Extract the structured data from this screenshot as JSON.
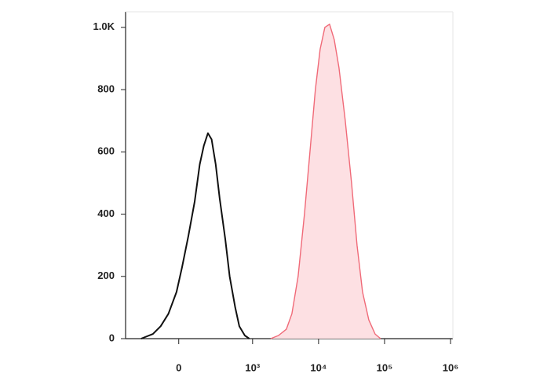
{
  "chart_data": {
    "type": "histogram",
    "xscale": "biexponential",
    "xlim": [
      -720,
      1000000
    ],
    "xticks": [
      0,
      {
        "value": 1000,
        "label": "10³"
      },
      {
        "value": 10000,
        "label": "10⁴"
      },
      {
        "value": 100000,
        "label": "10⁵"
      },
      {
        "value": 1000000,
        "label": "10⁶"
      }
    ],
    "ylim": [
      0,
      1050
    ],
    "yticks": [
      0,
      200,
      400,
      600,
      800,
      {
        "value": 1000,
        "label": "1.0K"
      }
    ],
    "series": [
      {
        "color": "#111111",
        "fill": "none",
        "x": [
          -510,
          -350,
          -245,
          -140,
          -30,
          45,
          130,
          215,
          285,
          340,
          395,
          445,
          500,
          555,
          630,
          690,
          765,
          820,
          895,
          955
        ],
        "values": [
          0,
          15,
          40,
          80,
          150,
          230,
          330,
          440,
          560,
          620,
          660,
          640,
          560,
          450,
          320,
          200,
          100,
          40,
          10,
          0
        ]
      },
      {
        "color": "#f06a78",
        "fill": "#fde0e3",
        "x": [
          1880,
          2470,
          3250,
          3940,
          4900,
          6110,
          7400,
          8950,
          10570,
          12450,
          14700,
          17300,
          20400,
          25400,
          31600,
          38300,
          46400,
          57800,
          71900,
          87100
        ],
        "values": [
          0,
          10,
          30,
          80,
          200,
          400,
          600,
          800,
          930,
          1000,
          1010,
          960,
          870,
          700,
          500,
          300,
          150,
          60,
          15,
          0
        ]
      }
    ]
  }
}
